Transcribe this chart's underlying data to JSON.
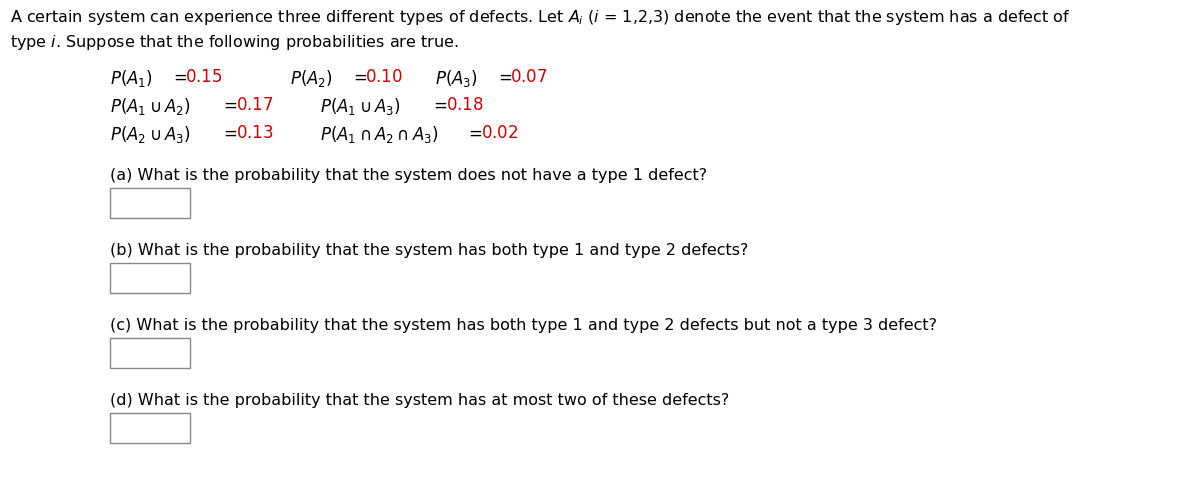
{
  "bg_color": "#ffffff",
  "text_color": "#000000",
  "red_color": "#cc0000",
  "header_line1": "A certain system can experience three different types of defects. Let $A_i$ ($i$ = 1,2,3) denote the event that the system has a defect of",
  "header_line2": "type $i$. Suppose that the following probabilities are true.",
  "questions": [
    "(a) What is the probability that the system does not have a type 1 defect?",
    "(b) What is the probability that the system has both type 1 and type 2 defects?",
    "(c) What is the probability that the system has both type 1 and type 2 defects but not a type 3 defect?",
    "(d) What is the probability that the system has at most two of these defects?"
  ],
  "fs": 11.5,
  "fs_prob": 12.0
}
